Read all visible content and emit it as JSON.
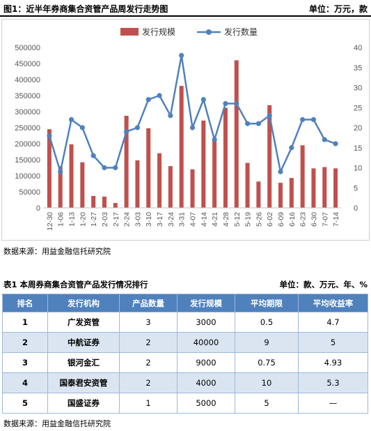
{
  "figure": {
    "title": "图1：近半年券商集合资管产品周发行走势图",
    "unit": "单位：万元，款",
    "source": "数据来源：用益金融信托研究院"
  },
  "chart_data": {
    "type": "bar",
    "categories": [
      "12-30",
      "1-06",
      "1-13",
      "1-20",
      "1-27",
      "2-03",
      "2-17",
      "2-24",
      "3-03",
      "3-10",
      "3-17",
      "3-24",
      "3-31",
      "4-07",
      "4-14",
      "4-21",
      "4-28",
      "5-12",
      "5-19",
      "5-26",
      "6-02",
      "6-09",
      "6-16",
      "6-23",
      "6-30",
      "7-07",
      "7-14"
    ],
    "series": [
      {
        "name": "发行规模",
        "type": "bar",
        "axis": "left",
        "color": "#c0504d",
        "values": [
          245000,
          130000,
          198000,
          142000,
          37000,
          35000,
          15000,
          287000,
          148000,
          248000,
          170000,
          130000,
          380000,
          120000,
          272000,
          210000,
          312000,
          460000,
          140000,
          82000,
          320000,
          78000,
          93000,
          195000,
          123000,
          127000,
          123000
        ]
      },
      {
        "name": "发行数量",
        "type": "line",
        "axis": "right",
        "color": "#4f81bd",
        "values": [
          18,
          9,
          22,
          20,
          13,
          10,
          10,
          19,
          20,
          27,
          28,
          23,
          38,
          20,
          27,
          17,
          26,
          26,
          21,
          21,
          23,
          9,
          15,
          22,
          22,
          17,
          16
        ]
      }
    ],
    "ylim_left": [
      0,
      500000
    ],
    "yticks_left": [
      0,
      50000,
      100000,
      150000,
      200000,
      250000,
      300000,
      350000,
      400000,
      450000,
      500000
    ],
    "ylim_right": [
      0,
      40
    ],
    "yticks_right": [
      0,
      5,
      10,
      15,
      20,
      25,
      30,
      35,
      40
    ],
    "legend": "top-center",
    "grid": false
  },
  "table": {
    "title": "表1 本周券商集合资管产品发行情况排行",
    "unit": "单位：款、万元、年、%",
    "headers": [
      "排名",
      "发行机构",
      "产品数量",
      "发行规模",
      "平均期限",
      "平均收益率"
    ],
    "rows": [
      [
        "1",
        "广发资管",
        "3",
        "3000",
        "0.5",
        "4.7"
      ],
      [
        "2",
        "中航证券",
        "2",
        "40000",
        "9",
        "5"
      ],
      [
        "3",
        "银河金汇",
        "2",
        "9000",
        "0.75",
        "4.93"
      ],
      [
        "4",
        "国泰君安资管",
        "2",
        "4000",
        "10",
        "5.3"
      ],
      [
        "5",
        "国盛证券",
        "1",
        "5000",
        "5",
        "—"
      ]
    ],
    "source": "数据来源：用益金融信托研究院"
  }
}
